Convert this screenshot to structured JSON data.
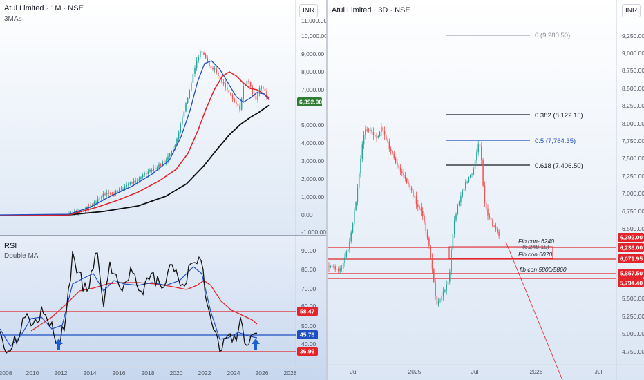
{
  "currency": "INR",
  "left_top": {
    "title": "Atul Limited · 1M · NSE",
    "subtitle": "3MAs",
    "price_ticks": [
      "11,000.00",
      "10,000.00",
      "9,000.00",
      "8,000.00",
      "7,000.00",
      "5,000.00",
      "4,000.00",
      "3,000.00",
      "2,000.00",
      "1,000.00",
      "0.00",
      "-1,000.00"
    ],
    "last_price": "6,392.00",
    "colors": {
      "sma_short": "#1e4fc2",
      "sma_mid": "#e3242b",
      "sma_long": "#0d0d0d",
      "up": "#26a69a",
      "down": "#ef5350",
      "last_tag": "#2e7d32"
    }
  },
  "left_bottom": {
    "title": "RSI",
    "subtitle": "Double MA",
    "ticks": [
      "90.00",
      "80.00",
      "70.00",
      "60.00",
      "50.00",
      "40.00"
    ],
    "tags": [
      "58.47",
      "45.76",
      "36.96"
    ],
    "x_labels": [
      "2008",
      "2010",
      "2012",
      "2014",
      "2016",
      "2018",
      "2020",
      "2022",
      "2024",
      "2026",
      "2028"
    ],
    "colors": {
      "upper": "#e3242b",
      "mid": "#1e4fc2",
      "lower": "#e3242b",
      "arrow": "#1e5fd0"
    }
  },
  "right": {
    "title": "Atul Limited · 3D · NSE",
    "price_ticks": [
      "9,250.00",
      "9,000.00",
      "8,750.00",
      "8,500.00",
      "8,250.00",
      "8,000.00",
      "7,750.00",
      "7,500.00",
      "7,250.00",
      "7,000.00",
      "6,750.00",
      "6,500.00",
      "5,500.00",
      "5,250.00",
      "5,000.00",
      "4,750.00"
    ],
    "fib_levels": [
      {
        "label": "0 (9,280.50)",
        "color": "#8a8f9c"
      },
      {
        "label": "0.382 (8,122.15)",
        "color": "#131722"
      },
      {
        "label": "0.5 (7,764.35)",
        "color": "#1e4fc2"
      },
      {
        "label": "0.618 (7,406.50)",
        "color": "#131722"
      }
    ],
    "notes": [
      "Fib con- 6240",
      "Fib con 6070",
      "fib con 5800/5860"
    ],
    "ghost_label": "(6,248.15)",
    "tags": [
      {
        "value": "6,392.00",
        "color": "#e3242b"
      },
      {
        "value": "6,236.00",
        "color": "#e3242b"
      },
      {
        "value": "6,071.95",
        "color": "#e3242b"
      },
      {
        "value": "5,857.50",
        "color": "#e3242b"
      },
      {
        "value": "5,794.40",
        "color": "#e3242b"
      }
    ],
    "x_labels": [
      "Jul",
      "2025",
      "Jul",
      "2026",
      "Jul"
    ]
  }
}
